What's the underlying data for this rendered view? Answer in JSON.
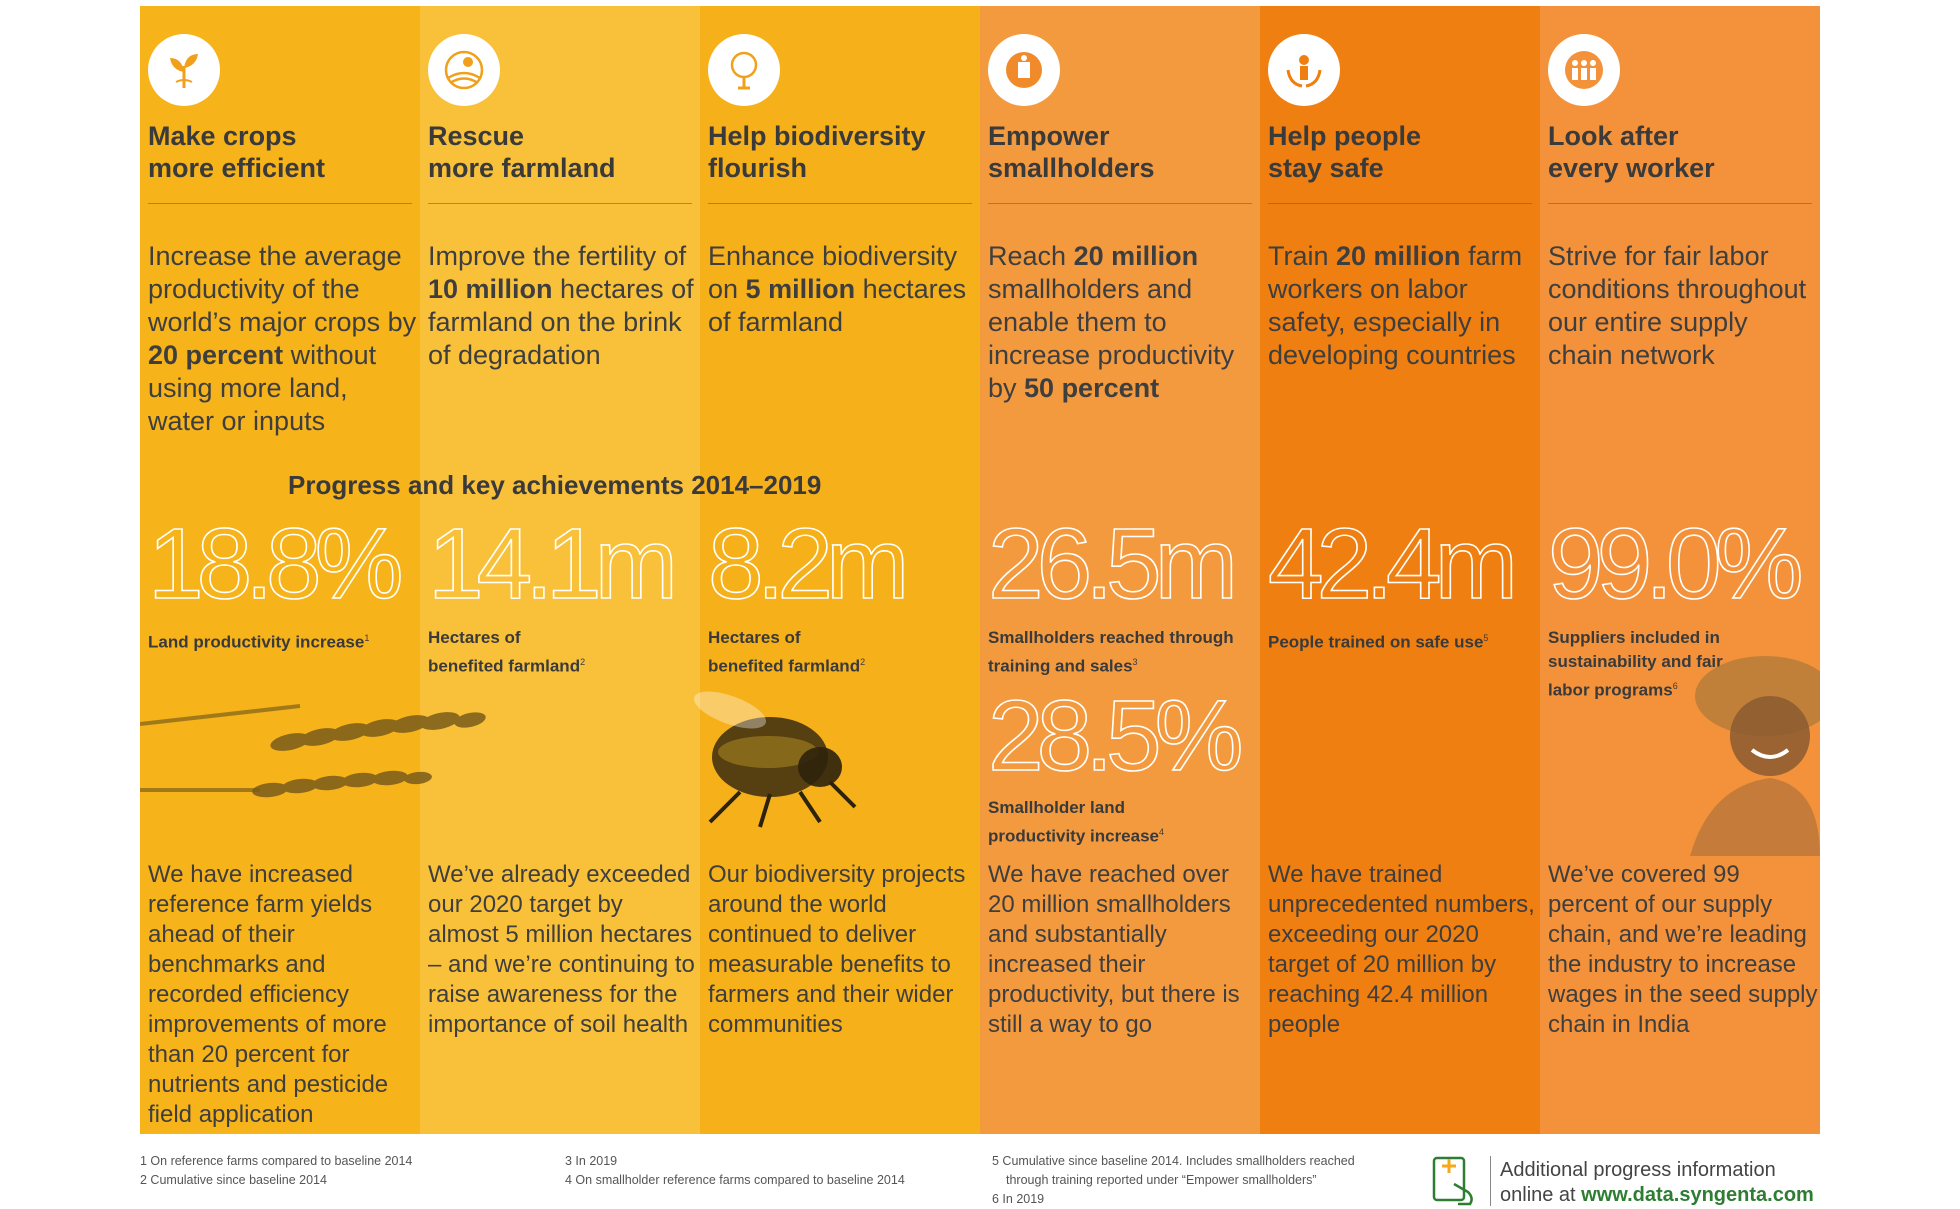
{
  "columns": [
    {
      "title": "Make crops\nmore efficient",
      "icon": "sprout-icon",
      "color": "#f6b31a",
      "goal_parts": [
        {
          "t": "Increase the average productivity of the world’s major crops by "
        },
        {
          "t": "20 percent",
          "b": true
        },
        {
          "t": " without using more land, water or inputs"
        }
      ],
      "stat": "18.8%",
      "stat_label": "Land productivity increase",
      "stat_note": "1",
      "story": "We have increased reference farm yields ahead of their benchmarks and recorded efficiency improvements of more than 20 percent for nutrients and pesticide field application"
    },
    {
      "title": "Rescue\nmore farmland",
      "icon": "farmland-icon",
      "color": "#f9c13a",
      "goal_parts": [
        {
          "t": "Improve the fertility of "
        },
        {
          "t": "10 million",
          "b": true
        },
        {
          "t": " hectares of farmland on the brink of degradation"
        }
      ],
      "stat": "14.1m",
      "stat_label": "Hectares of\nbenefited farmland",
      "stat_note": "2",
      "story": "We’ve already exceeded our 2020 target by almost 5 million hectares – and we’re continuing to raise awareness for the importance of soil health"
    },
    {
      "title": "Help biodiversity\nflourish",
      "icon": "tree-icon",
      "color": "#f6b01a",
      "goal_parts": [
        {
          "t": "Enhance biodiversity on "
        },
        {
          "t": "5 million",
          "b": true
        },
        {
          "t": " hectares of farmland"
        }
      ],
      "stat": "8.2m",
      "stat_label": "Hectares of\nbenefited farmland",
      "stat_note": "2",
      "story": "Our biodiversity projects around the world continued to deliver measurable benefits to farmers and their wider communities"
    },
    {
      "title": "Empower\nsmallholders",
      "icon": "smallholder-icon",
      "color": "#f39a3e",
      "goal_parts": [
        {
          "t": "Reach "
        },
        {
          "t": "20 million",
          "b": true
        },
        {
          "t": " smallholders and enable them to increase productivity by "
        },
        {
          "t": "50 percent",
          "b": true
        }
      ],
      "stat": "26.5m",
      "stat_label": "Smallholders reached through\ntraining and sales",
      "stat_note": "3",
      "stat2": "28.5%",
      "stat2_label": "Smallholder land\nproductivity increase",
      "stat2_note": "4",
      "story": "We have reached over 20 million smallholders and substantially increased their productivity, but there is still a way to go"
    },
    {
      "title": "Help people\nstay safe",
      "icon": "person-hands-icon",
      "color": "#ee7f10",
      "goal_parts": [
        {
          "t": "Train "
        },
        {
          "t": "20 million",
          "b": true
        },
        {
          "t": " farm workers on labor safety, especially in developing countries"
        }
      ],
      "stat": "42.4m",
      "stat_label": "People trained on safe use",
      "stat_note": "5",
      "story": "We have trained unprecedented numbers, exceeding our 2020 target of 20 million by reaching 42.4 million people"
    },
    {
      "title": "Look after\nevery worker",
      "icon": "workers-group-icon",
      "color": "#f3923a",
      "goal_parts": [
        {
          "t": "Strive for fair labor conditions throughout our entire supply chain network"
        }
      ],
      "stat": "99.0%",
      "stat_label": "Suppliers included in\nsustainability and fair\nlabor programs",
      "stat_note": "6",
      "story": "We’ve covered 99 percent of our supply chain, and we’re leading the industry to increase wages in the seed supply chain in India"
    }
  ],
  "progress_heading": "Progress and key achievements 2014–2019",
  "footnotes": [
    "1  On reference farms compared to baseline 2014",
    "2  Cumulative since baseline 2014",
    "3  In 2019",
    "4  On smallholder reference farms compared to baseline 2014",
    "5  Cumulative since baseline 2014. Includes smallholders reached",
    "through training reported under “Empower smallholders”",
    "6  In 2019"
  ],
  "cta_line1": "Additional progress information",
  "cta_line2_prefix": "online at ",
  "cta_url": "www.data.syngenta.com",
  "accent_green": "#2e7d32"
}
